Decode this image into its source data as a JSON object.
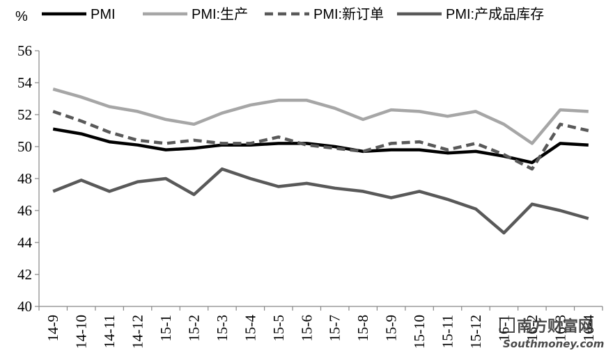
{
  "chart_data": {
    "type": "line",
    "title": "",
    "unit_label": "%",
    "xlabel": "",
    "ylabel": "",
    "ylim": [
      40,
      56
    ],
    "yticks": [
      40,
      42,
      44,
      46,
      48,
      50,
      52,
      54,
      56
    ],
    "grid": false,
    "legend_position": "top",
    "categories": [
      "14-9",
      "14-10",
      "14-11",
      "14-12",
      "15-1",
      "15-2",
      "15-3",
      "15-4",
      "15-5",
      "15-6",
      "15-7",
      "15-8",
      "15-9",
      "15-10",
      "15-11",
      "15-12",
      "16-1",
      "16-2",
      "16-3",
      "16-4"
    ],
    "series": [
      {
        "name": "PMI",
        "color": "#000000",
        "dash": "solid",
        "values": [
          51.1,
          50.8,
          50.3,
          50.1,
          49.8,
          49.9,
          50.1,
          50.1,
          50.2,
          50.2,
          50.0,
          49.7,
          49.8,
          49.8,
          49.6,
          49.7,
          49.4,
          49.0,
          50.2,
          50.1
        ]
      },
      {
        "name": "PMI:生产",
        "color": "#a6a6a6",
        "dash": "solid",
        "values": [
          53.6,
          53.1,
          52.5,
          52.2,
          51.7,
          51.4,
          52.1,
          52.6,
          52.9,
          52.9,
          52.4,
          51.7,
          52.3,
          52.2,
          51.9,
          52.2,
          51.4,
          50.2,
          52.3,
          52.2
        ]
      },
      {
        "name": "PMI:新订单",
        "color": "#595959",
        "dash": "dashed",
        "values": [
          52.2,
          51.6,
          50.9,
          50.4,
          50.2,
          50.4,
          50.2,
          50.2,
          50.6,
          50.1,
          49.9,
          49.7,
          50.2,
          50.3,
          49.8,
          50.2,
          49.5,
          48.6,
          51.4,
          51.0
        ]
      },
      {
        "name": "PMI:产成品库存",
        "color": "#595959",
        "dash": "solid",
        "values": [
          47.2,
          47.9,
          47.2,
          47.8,
          48.0,
          47.0,
          48.6,
          48.0,
          47.5,
          47.7,
          47.4,
          47.2,
          46.8,
          47.2,
          46.7,
          46.1,
          44.6,
          46.4,
          46.0,
          45.5
        ]
      }
    ]
  },
  "watermark": {
    "main": "南方财富网",
    "sub": "Southmoney.com"
  }
}
